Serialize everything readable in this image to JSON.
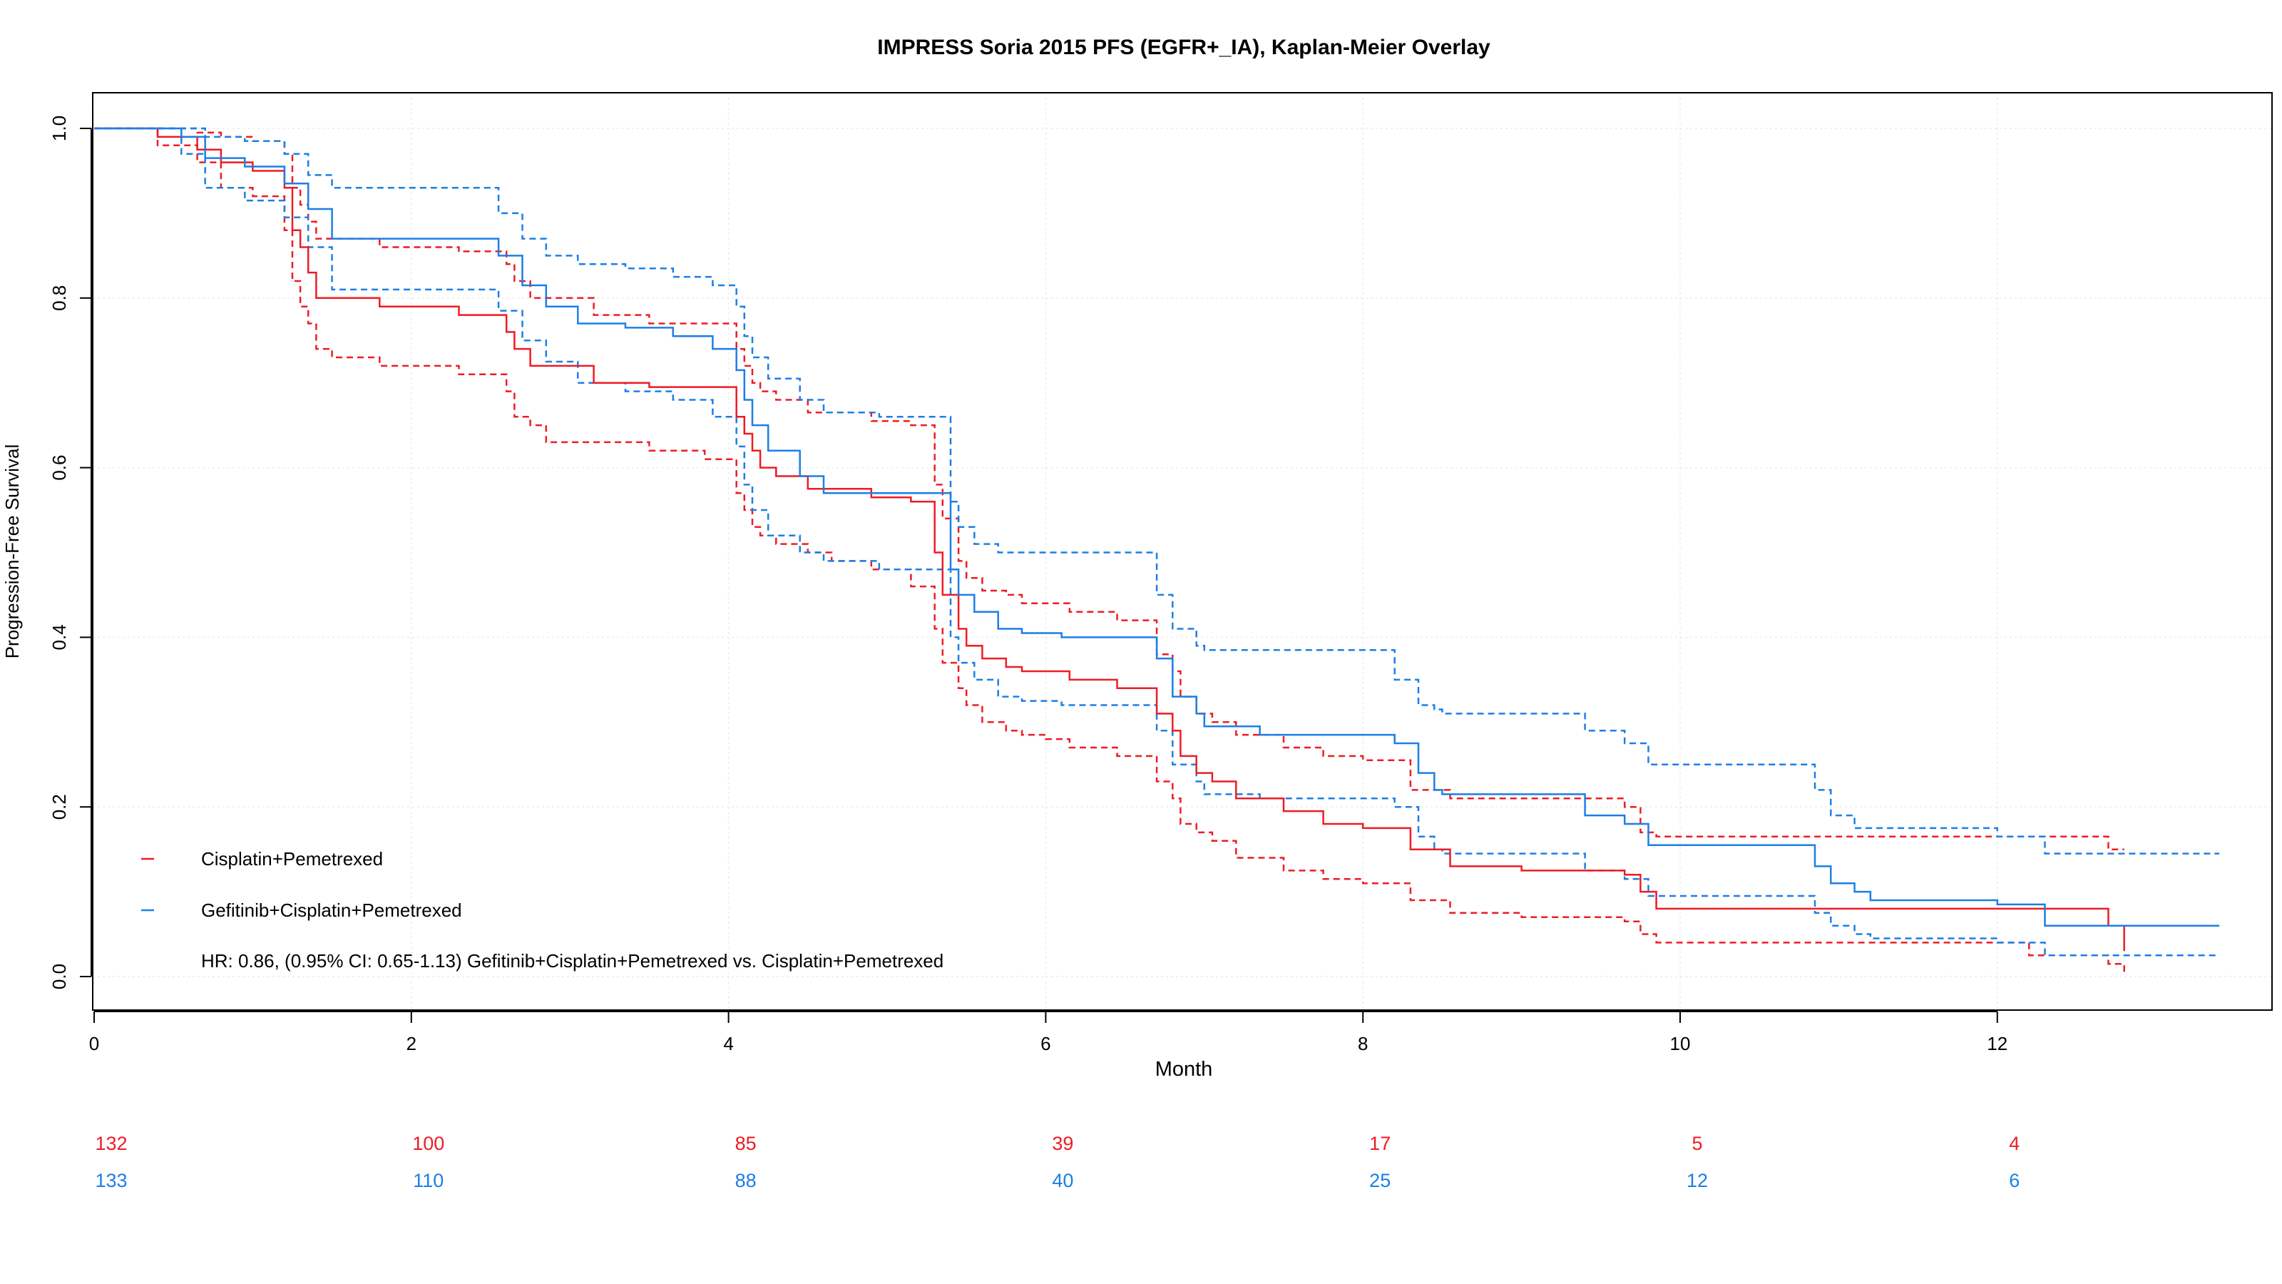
{
  "chart_data": {
    "type": "line",
    "title": "IMPRESS Soria 2015 PFS (EGFR+_IA), Kaplan-Meier Overlay",
    "xlabel": "Month",
    "ylabel": "Progression-Free Survival",
    "xlim": [
      0,
      13.75
    ],
    "ylim": [
      -0.04,
      1.04
    ],
    "x_ticks": [
      0,
      2,
      4,
      6,
      8,
      10,
      12
    ],
    "y_ticks": [
      0.0,
      0.2,
      0.4,
      0.6,
      0.8,
      1.0
    ],
    "y_tick_labels": [
      "0.0",
      "0.2",
      "0.4",
      "0.6",
      "0.8",
      "1.0"
    ],
    "grid": true,
    "legend_position": "bottom-left",
    "annotation": "HR: 0.86, (0.95% CI: 0.65-1.13) Gefitinib+Cisplatin+Pemetrexed vs. Cisplatin+Pemetrexed",
    "series": [
      {
        "name": "Cisplatin+Pemetrexed",
        "color": "#ee1c25",
        "at_risk": [
          "132",
          "100",
          "85",
          "39",
          "17",
          "5",
          "4"
        ],
        "x": [
          0,
          0.4,
          0.65,
          0.8,
          1.0,
          1.2,
          1.25,
          1.3,
          1.35,
          1.4,
          1.5,
          1.8,
          2.3,
          2.6,
          2.65,
          2.75,
          2.85,
          3.15,
          3.5,
          3.85,
          4.05,
          4.1,
          4.15,
          4.2,
          4.3,
          4.5,
          4.65,
          4.9,
          5.15,
          5.3,
          5.35,
          5.45,
          5.5,
          5.6,
          5.75,
          5.85,
          6.0,
          6.15,
          6.45,
          6.7,
          6.8,
          6.85,
          6.95,
          7.05,
          7.2,
          7.5,
          7.75,
          8.0,
          8.3,
          8.55,
          9.0,
          9.65,
          9.75,
          9.85,
          12.2,
          12.7,
          12.8
        ],
        "y": [
          1.0,
          0.99,
          0.975,
          0.96,
          0.95,
          0.93,
          0.88,
          0.86,
          0.83,
          0.8,
          0.8,
          0.79,
          0.78,
          0.76,
          0.74,
          0.72,
          0.72,
          0.7,
          0.695,
          0.695,
          0.66,
          0.64,
          0.62,
          0.6,
          0.59,
          0.575,
          0.575,
          0.565,
          0.56,
          0.5,
          0.45,
          0.41,
          0.39,
          0.375,
          0.365,
          0.36,
          0.36,
          0.35,
          0.34,
          0.31,
          0.29,
          0.26,
          0.24,
          0.23,
          0.21,
          0.195,
          0.18,
          0.175,
          0.15,
          0.13,
          0.125,
          0.12,
          0.1,
          0.08,
          0.08,
          0.06,
          0.03
        ],
        "lower": [
          1.0,
          0.98,
          0.96,
          0.93,
          0.92,
          0.88,
          0.82,
          0.79,
          0.77,
          0.74,
          0.73,
          0.72,
          0.71,
          0.69,
          0.66,
          0.65,
          0.63,
          0.63,
          0.62,
          0.61,
          0.57,
          0.55,
          0.53,
          0.52,
          0.51,
          0.5,
          0.49,
          0.48,
          0.46,
          0.41,
          0.37,
          0.34,
          0.32,
          0.3,
          0.29,
          0.285,
          0.28,
          0.27,
          0.26,
          0.23,
          0.21,
          0.18,
          0.17,
          0.16,
          0.14,
          0.125,
          0.115,
          0.11,
          0.09,
          0.075,
          0.07,
          0.065,
          0.05,
          0.04,
          0.025,
          0.015,
          0.005
        ],
        "upper": [
          1.0,
          1.0,
          0.995,
          0.99,
          0.985,
          0.97,
          0.93,
          0.91,
          0.89,
          0.87,
          0.87,
          0.86,
          0.855,
          0.84,
          0.82,
          0.8,
          0.8,
          0.78,
          0.77,
          0.77,
          0.74,
          0.72,
          0.7,
          0.69,
          0.68,
          0.665,
          0.665,
          0.655,
          0.65,
          0.58,
          0.54,
          0.49,
          0.47,
          0.455,
          0.45,
          0.44,
          0.44,
          0.43,
          0.42,
          0.38,
          0.36,
          0.33,
          0.31,
          0.3,
          0.285,
          0.27,
          0.26,
          0.255,
          0.22,
          0.21,
          0.21,
          0.2,
          0.17,
          0.165,
          0.165,
          0.15,
          0.15
        ]
      },
      {
        "name": "Gefitinib+Cisplatin+Pemetrexed",
        "color": "#1c7fe6",
        "at_risk": [
          "133",
          "110",
          "88",
          "40",
          "25",
          "12",
          "6"
        ],
        "x": [
          0,
          0.55,
          0.7,
          0.95,
          1.2,
          1.35,
          1.5,
          1.9,
          2.55,
          2.7,
          2.85,
          3.05,
          3.35,
          3.65,
          3.9,
          4.05,
          4.1,
          4.15,
          4.25,
          4.45,
          4.6,
          4.95,
          5.4,
          5.45,
          5.55,
          5.7,
          5.85,
          6.1,
          6.7,
          6.8,
          6.95,
          7.0,
          7.35,
          8.2,
          8.35,
          8.45,
          8.5,
          9.4,
          9.65,
          9.8,
          10.85,
          10.95,
          11.1,
          11.2,
          12.0,
          12.3,
          13.4
        ],
        "y": [
          1.0,
          0.99,
          0.965,
          0.955,
          0.935,
          0.905,
          0.87,
          0.87,
          0.85,
          0.815,
          0.79,
          0.77,
          0.765,
          0.755,
          0.74,
          0.715,
          0.68,
          0.65,
          0.62,
          0.59,
          0.57,
          0.57,
          0.48,
          0.45,
          0.43,
          0.41,
          0.405,
          0.4,
          0.375,
          0.33,
          0.31,
          0.295,
          0.285,
          0.275,
          0.24,
          0.22,
          0.215,
          0.19,
          0.18,
          0.155,
          0.13,
          0.11,
          0.1,
          0.09,
          0.085,
          0.06,
          0.06
        ],
        "lower": [
          1.0,
          0.97,
          0.93,
          0.915,
          0.895,
          0.86,
          0.81,
          0.81,
          0.785,
          0.75,
          0.725,
          0.7,
          0.69,
          0.68,
          0.66,
          0.625,
          0.58,
          0.55,
          0.52,
          0.5,
          0.49,
          0.48,
          0.4,
          0.37,
          0.35,
          0.33,
          0.325,
          0.32,
          0.29,
          0.25,
          0.23,
          0.215,
          0.21,
          0.2,
          0.165,
          0.15,
          0.145,
          0.125,
          0.115,
          0.095,
          0.075,
          0.06,
          0.05,
          0.045,
          0.04,
          0.025,
          0.025
        ],
        "upper": [
          1.0,
          1.0,
          0.99,
          0.985,
          0.97,
          0.945,
          0.93,
          0.93,
          0.9,
          0.87,
          0.85,
          0.84,
          0.835,
          0.825,
          0.815,
          0.79,
          0.755,
          0.73,
          0.705,
          0.68,
          0.665,
          0.66,
          0.56,
          0.53,
          0.51,
          0.5,
          0.5,
          0.5,
          0.45,
          0.41,
          0.39,
          0.385,
          0.385,
          0.35,
          0.32,
          0.315,
          0.31,
          0.29,
          0.275,
          0.25,
          0.22,
          0.19,
          0.175,
          0.175,
          0.165,
          0.145,
          0.145
        ]
      }
    ]
  }
}
